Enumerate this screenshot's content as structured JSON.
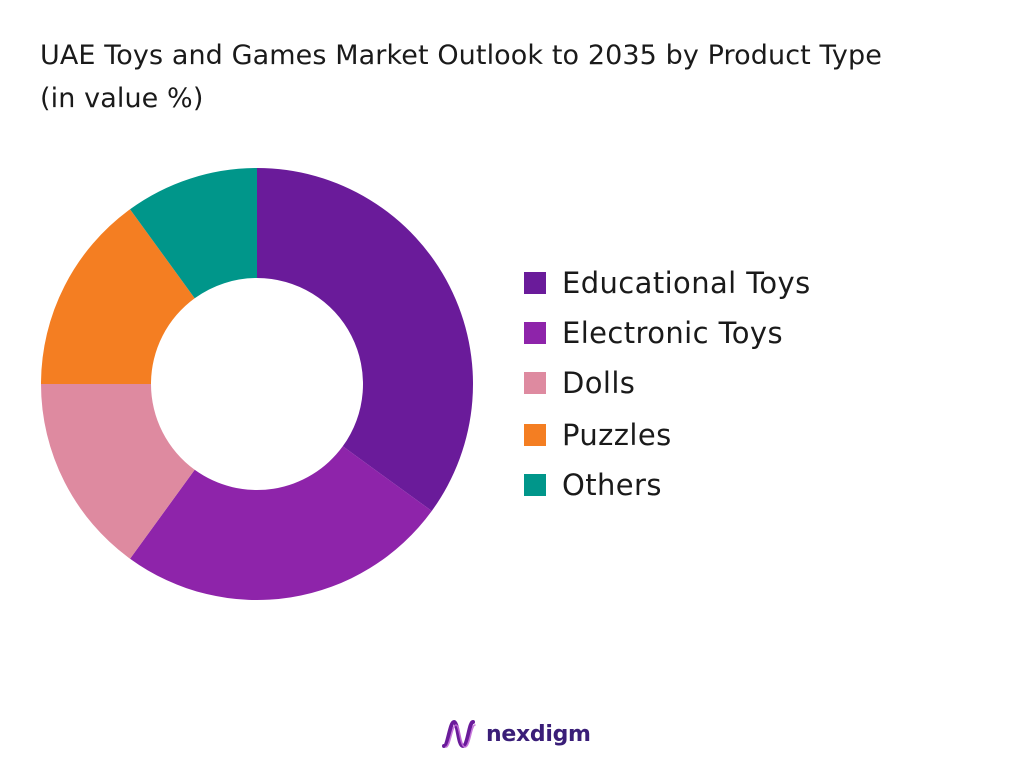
{
  "chart_data": {
    "type": "pie",
    "title": "UAE Toys and Games Market Outlook to 2035 by Product Type",
    "subtitle": "(in value %)",
    "categories": [
      "Educational Toys",
      "Electronic Toys",
      "Dolls",
      "Puzzles",
      "Others"
    ],
    "values": [
      35,
      25,
      15,
      15,
      10
    ],
    "colors": [
      "#6a1b9a",
      "#8e24aa",
      "#de8aa0",
      "#f47e22",
      "#00968a"
    ],
    "donut": true,
    "legend": "right"
  },
  "brand": {
    "name": "nexdigm",
    "icon": "nexdigm-logo-icon"
  }
}
